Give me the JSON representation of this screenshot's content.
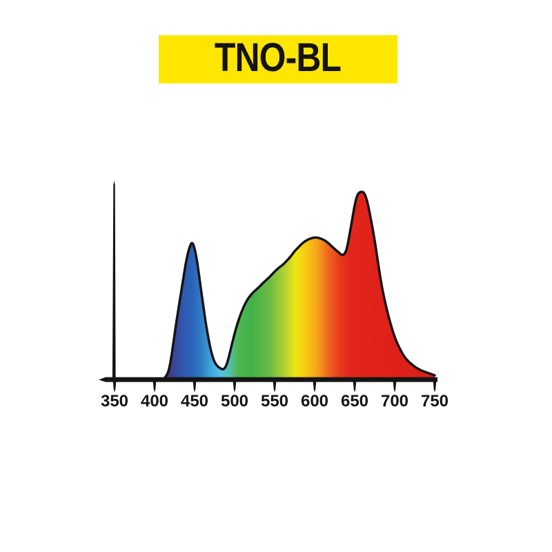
{
  "banner": {
    "bg_color": "#FFE600",
    "text_color": "#141414"
  },
  "chart_data": {
    "type": "area",
    "title": "TNO-BL",
    "xlabel": "",
    "ylabel": "",
    "xlim": [
      350,
      750
    ],
    "ylim": [
      0,
      1.05
    ],
    "grid": false,
    "legend": false,
    "x_tick_labels": [
      "350",
      "400",
      "450",
      "500",
      "550",
      "600",
      "650",
      "700",
      "750"
    ],
    "x_tick_values": [
      350,
      400,
      450,
      500,
      550,
      600,
      650,
      700,
      750
    ],
    "outline_color": "#141414",
    "axis_color": "#141414",
    "x": [
      412,
      415,
      418,
      421,
      424,
      427,
      430,
      433,
      436,
      439,
      442,
      445,
      447,
      449,
      452,
      455,
      458,
      461,
      464,
      467,
      470,
      474,
      478,
      482,
      485,
      488,
      491,
      494,
      497,
      500,
      503,
      506,
      510,
      515,
      520,
      525,
      530,
      535,
      540,
      545,
      550,
      555,
      560,
      565,
      570,
      575,
      580,
      585,
      590,
      595,
      600,
      605,
      610,
      615,
      620,
      625,
      630,
      634,
      637,
      640,
      644,
      648,
      651,
      654,
      657,
      661,
      664,
      667,
      670,
      674,
      678,
      682,
      686,
      690,
      694,
      698,
      702,
      706,
      710,
      715,
      720,
      725,
      730,
      735,
      740,
      745,
      750
    ],
    "values": [
      0.005,
      0.02,
      0.05,
      0.12,
      0.21,
      0.3,
      0.38,
      0.46,
      0.54,
      0.62,
      0.68,
      0.72,
      0.73,
      0.715,
      0.66,
      0.575,
      0.48,
      0.39,
      0.3,
      0.225,
      0.16,
      0.1,
      0.072,
      0.06,
      0.053,
      0.06,
      0.09,
      0.14,
      0.195,
      0.245,
      0.29,
      0.33,
      0.375,
      0.42,
      0.45,
      0.472,
      0.49,
      0.512,
      0.532,
      0.552,
      0.575,
      0.595,
      0.61,
      0.632,
      0.655,
      0.685,
      0.705,
      0.728,
      0.742,
      0.752,
      0.757,
      0.755,
      0.747,
      0.735,
      0.715,
      0.695,
      0.678,
      0.662,
      0.667,
      0.69,
      0.78,
      0.88,
      0.95,
      0.99,
      1.0,
      1.0,
      0.975,
      0.925,
      0.86,
      0.77,
      0.655,
      0.545,
      0.45,
      0.375,
      0.31,
      0.25,
      0.205,
      0.168,
      0.135,
      0.105,
      0.086,
      0.068,
      0.055,
      0.045,
      0.037,
      0.03,
      0.022
    ],
    "peaks": [
      {
        "nm": 447,
        "value": 0.73,
        "label": "blue peak"
      },
      {
        "nm": 600,
        "value": 0.757,
        "label": "yellow-orange hump"
      },
      {
        "nm": 659,
        "value": 1.0,
        "label": "red peak"
      }
    ],
    "spectrum_gradient": [
      {
        "nm": 412,
        "color": "#3F2E78"
      },
      {
        "nm": 424,
        "color": "#3C4494"
      },
      {
        "nm": 436,
        "color": "#2F58B0"
      },
      {
        "nm": 447,
        "color": "#2B63BA"
      },
      {
        "nm": 458,
        "color": "#2F7BC4"
      },
      {
        "nm": 470,
        "color": "#3FA4DA"
      },
      {
        "nm": 482,
        "color": "#52C0E8"
      },
      {
        "nm": 493,
        "color": "#55BFAE"
      },
      {
        "nm": 504,
        "color": "#4EB852"
      },
      {
        "nm": 522,
        "color": "#42B147"
      },
      {
        "nm": 545,
        "color": "#6FBC44"
      },
      {
        "nm": 562,
        "color": "#AFD033"
      },
      {
        "nm": 576,
        "color": "#EEE612"
      },
      {
        "nm": 590,
        "color": "#F9C614"
      },
      {
        "nm": 604,
        "color": "#F7A01C"
      },
      {
        "nm": 617,
        "color": "#F0671E"
      },
      {
        "nm": 630,
        "color": "#E73E1D"
      },
      {
        "nm": 644,
        "color": "#E2261B"
      },
      {
        "nm": 700,
        "color": "#DF2019"
      },
      {
        "nm": 750,
        "color": "#DA1F17"
      }
    ]
  }
}
